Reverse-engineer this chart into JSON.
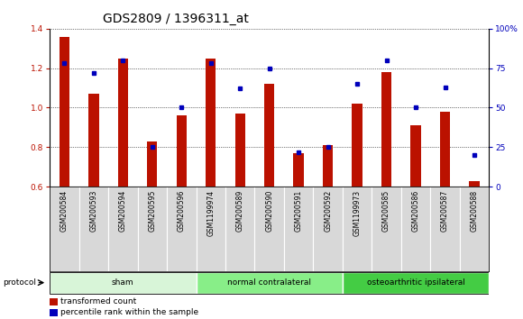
{
  "title": "GDS2809 / 1396311_at",
  "samples": [
    "GSM200584",
    "GSM200593",
    "GSM200594",
    "GSM200595",
    "GSM200596",
    "GSM1199974",
    "GSM200589",
    "GSM200590",
    "GSM200591",
    "GSM200592",
    "GSM1199973",
    "GSM200585",
    "GSM200586",
    "GSM200587",
    "GSM200588"
  ],
  "red_values": [
    1.36,
    1.07,
    1.25,
    0.83,
    0.96,
    1.25,
    0.97,
    1.12,
    0.77,
    0.81,
    1.02,
    1.18,
    0.91,
    0.98,
    0.63
  ],
  "blue_values": [
    78,
    72,
    80,
    25,
    50,
    78,
    62,
    75,
    22,
    25,
    65,
    80,
    50,
    63,
    20
  ],
  "groups": [
    {
      "label": "sham",
      "start": 0,
      "end": 5,
      "color": "#d8f5d8"
    },
    {
      "label": "normal contralateral",
      "start": 5,
      "end": 10,
      "color": "#88ee88"
    },
    {
      "label": "osteoarthritic ipsilateral",
      "start": 10,
      "end": 15,
      "color": "#44cc44"
    }
  ],
  "protocol_label": "protocol",
  "red_label": "transformed count",
  "blue_label": "percentile rank within the sample",
  "ylim_left": [
    0.6,
    1.4
  ],
  "ylim_right": [
    0,
    100
  ],
  "yticks_left": [
    0.6,
    0.8,
    1.0,
    1.2,
    1.4
  ],
  "yticks_right": [
    0,
    25,
    50,
    75,
    100
  ],
  "ytick_labels_right": [
    "0",
    "25",
    "50",
    "75",
    "100%"
  ],
  "bar_color": "#bb1100",
  "dot_color": "#0000bb",
  "grid_color": "#000000",
  "bg_xtick": "#d8d8d8",
  "title_fontsize": 10,
  "tick_fontsize": 6.5,
  "label_fontsize": 7
}
